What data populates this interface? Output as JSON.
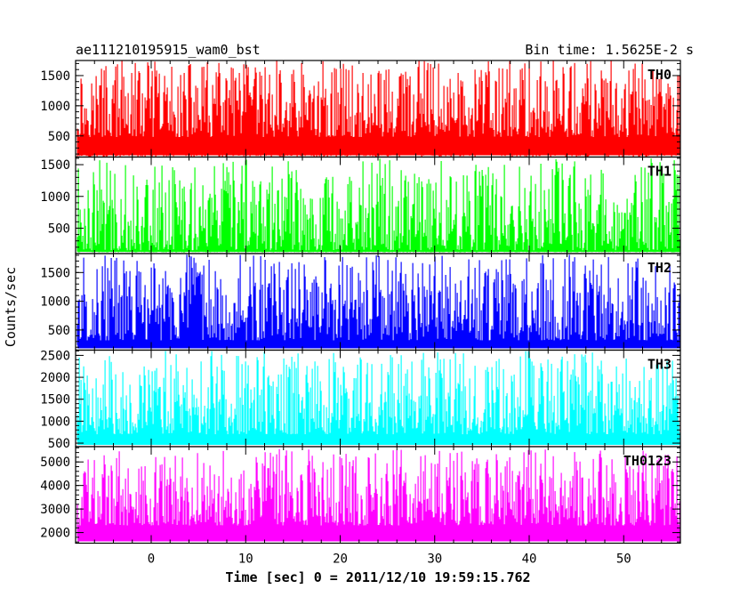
{
  "header": {
    "left_title": "ae111210195915_wam0_bst",
    "right_title": "Bin time: 1.5625E-2 s"
  },
  "axes": {
    "ylabel": "Counts/sec",
    "xlabel": "Time [sec] 0 = 2011/12/10 19:59:15.762"
  },
  "chart_data": {
    "type": "line",
    "x_range": [
      -8,
      56
    ],
    "x_ticks": [
      0,
      10,
      20,
      30,
      40,
      50
    ],
    "x_minor_step": 2,
    "panels": [
      {
        "name": "TH0",
        "color": "#ff0000",
        "ylim": [
          150,
          1750
        ],
        "y_ticks": [
          500,
          1000,
          1500
        ],
        "base": 480,
        "peak": 1750,
        "floor": 150
      },
      {
        "name": "TH1",
        "color": "#00ff00",
        "ylim": [
          100,
          1620
        ],
        "y_ticks": [
          500,
          1000,
          1500
        ],
        "base": 150,
        "peak": 1600,
        "floor": 120
      },
      {
        "name": "TH2",
        "color": "#0000ff",
        "ylim": [
          150,
          1830
        ],
        "y_ticks": [
          500,
          1000,
          1500
        ],
        "base": 320,
        "peak": 1820,
        "floor": 200
      },
      {
        "name": "TH3",
        "color": "#00ffff",
        "ylim": [
          420,
          2620
        ],
        "y_ticks": [
          500,
          1000,
          1500,
          2000,
          2500
        ],
        "base": 700,
        "peak": 2600,
        "floor": 470
      },
      {
        "name": "TH0123",
        "color": "#ff00ff",
        "ylim": [
          1550,
          5650
        ],
        "y_ticks": [
          2000,
          3000,
          4000,
          5000
        ],
        "base": 2300,
        "peak": 5550,
        "floor": 1700
      }
    ]
  }
}
